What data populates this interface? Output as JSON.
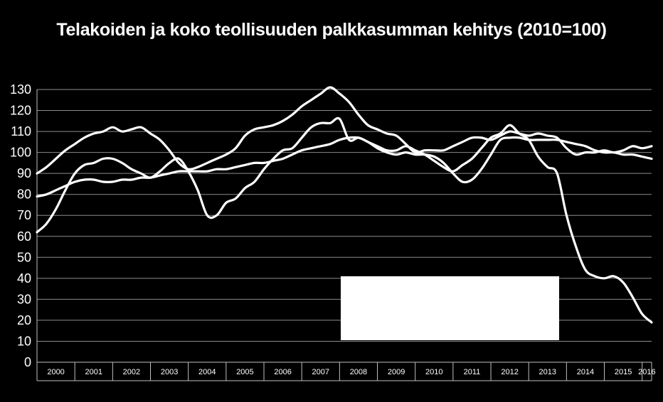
{
  "chart_data": {
    "type": "line",
    "title": "Telakoiden ja koko teollisuuden palkkasumman kehitys  (2010=100)",
    "xlabel": "",
    "ylabel": "",
    "ylim": [
      0,
      130
    ],
    "yticks": [
      0,
      10,
      20,
      30,
      40,
      50,
      60,
      70,
      80,
      90,
      100,
      110,
      120,
      130
    ],
    "xlim": [
      2000,
      2016.25
    ],
    "x_tick_labels": [
      "2000",
      "2001",
      "2002",
      "2003",
      "2004",
      "2005",
      "2006",
      "2007",
      "2008",
      "2009",
      "2010",
      "2011",
      "2012",
      "2013",
      "2014",
      "2015",
      "2016"
    ],
    "grid": "horizontal",
    "legend": "none",
    "line_color": "#ffffff",
    "background": "#000000",
    "series": [
      {
        "x": [
          2000.0,
          2000.25,
          2000.5,
          2000.75,
          2001.0,
          2001.25,
          2001.5,
          2001.75,
          2002.0,
          2002.25,
          2002.5,
          2002.75,
          2003.0,
          2003.25,
          2003.5,
          2003.75,
          2004.0,
          2004.25,
          2004.5,
          2004.75,
          2005.0,
          2005.25,
          2005.5,
          2005.75,
          2006.0,
          2006.25,
          2006.5,
          2006.75,
          2007.0,
          2007.25,
          2007.5,
          2007.75,
          2008.0,
          2008.25,
          2008.5,
          2008.75,
          2009.0,
          2009.25,
          2009.5,
          2009.75,
          2010.0,
          2010.25,
          2010.5,
          2010.75,
          2011.0,
          2011.25,
          2011.5,
          2011.75,
          2012.0,
          2012.25,
          2012.5,
          2012.75,
          2013.0,
          2013.25,
          2013.5,
          2013.75,
          2014.0,
          2014.25,
          2014.5,
          2014.75,
          2015.0,
          2015.25,
          2015.5,
          2015.75,
          2016.0,
          2016.25
        ],
        "values": [
          90,
          93,
          97,
          101,
          104,
          107,
          109,
          110,
          112,
          110,
          111,
          112,
          109,
          106,
          101,
          95,
          92,
          93,
          95,
          97,
          99,
          102,
          108,
          111,
          112,
          113,
          115,
          118,
          122,
          125,
          128,
          131,
          128,
          124,
          118,
          113,
          111,
          109,
          108,
          104,
          100,
          101,
          101,
          101,
          103,
          105,
          107,
          107,
          106,
          108,
          110,
          109,
          108,
          109,
          108,
          107,
          102,
          99,
          100,
          100,
          101,
          100,
          101,
          103,
          102,
          103
        ]
      },
      {
        "x": [
          2000.0,
          2000.25,
          2000.5,
          2000.75,
          2001.0,
          2001.25,
          2001.5,
          2001.75,
          2002.0,
          2002.25,
          2002.5,
          2002.75,
          2003.0,
          2003.25,
          2003.5,
          2003.75,
          2004.0,
          2004.25,
          2004.5,
          2004.75,
          2005.0,
          2005.25,
          2005.5,
          2005.75,
          2006.0,
          2006.25,
          2006.5,
          2006.75,
          2007.0,
          2007.25,
          2007.5,
          2007.75,
          2008.0,
          2008.25,
          2008.5,
          2008.75,
          2009.0,
          2009.25,
          2009.5,
          2009.75,
          2010.0,
          2010.25,
          2010.5,
          2010.75,
          2011.0,
          2011.25,
          2011.5,
          2011.75,
          2012.0,
          2012.25,
          2012.5,
          2012.75,
          2013.0,
          2013.25,
          2013.5,
          2013.75,
          2014.0,
          2014.25,
          2014.5,
          2014.75,
          2015.0,
          2015.25,
          2015.5,
          2015.75,
          2016.0,
          2016.25
        ],
        "values": [
          62,
          66,
          73,
          82,
          90,
          94,
          95,
          97,
          97,
          95,
          92,
          90,
          88,
          91,
          95,
          97,
          91,
          82,
          70,
          70,
          76,
          78,
          83,
          86,
          92,
          97,
          101,
          102,
          107,
          112,
          114,
          114,
          116,
          106,
          107,
          105,
          103,
          101,
          101,
          103,
          101,
          99,
          96,
          93,
          91,
          94,
          97,
          102,
          107,
          109,
          113,
          109,
          106,
          98,
          93,
          90,
          70,
          55,
          44,
          41,
          40,
          41,
          38,
          31,
          23,
          19
        ]
      },
      {
        "x": [
          2000.0,
          2000.25,
          2000.5,
          2000.75,
          2001.0,
          2001.25,
          2001.5,
          2001.75,
          2002.0,
          2002.25,
          2002.5,
          2002.75,
          2003.0,
          2003.25,
          2003.5,
          2003.75,
          2004.0,
          2004.25,
          2004.5,
          2004.75,
          2005.0,
          2005.25,
          2005.5,
          2005.75,
          2006.0,
          2006.25,
          2006.5,
          2006.75,
          2007.0,
          2007.25,
          2007.5,
          2007.75,
          2008.0,
          2008.25,
          2008.5,
          2008.75,
          2009.0,
          2009.25,
          2009.5,
          2009.75,
          2010.0,
          2010.25,
          2010.5,
          2010.75,
          2011.0,
          2011.25,
          2011.5,
          2011.75,
          2012.0,
          2012.25,
          2012.5,
          2012.75,
          2013.0,
          2013.25,
          2013.5,
          2013.75,
          2014.0,
          2014.25,
          2014.5,
          2014.75,
          2015.0,
          2015.25,
          2015.5,
          2015.75,
          2016.0,
          2016.25
        ],
        "values": [
          79,
          80,
          82,
          84,
          86,
          87,
          87,
          86,
          86,
          87,
          87,
          88,
          88,
          89,
          90,
          91,
          91,
          91,
          91,
          92,
          92,
          93,
          94,
          95,
          95,
          96,
          97,
          99,
          101,
          102,
          103,
          104,
          106,
          107,
          107,
          105,
          102,
          100,
          99,
          100,
          99,
          99,
          98,
          95,
          90,
          86,
          87,
          92,
          99,
          106,
          107,
          107,
          106,
          106,
          106,
          106,
          105,
          104,
          103,
          101,
          100,
          100,
          99,
          99,
          98,
          97
        ]
      }
    ]
  }
}
